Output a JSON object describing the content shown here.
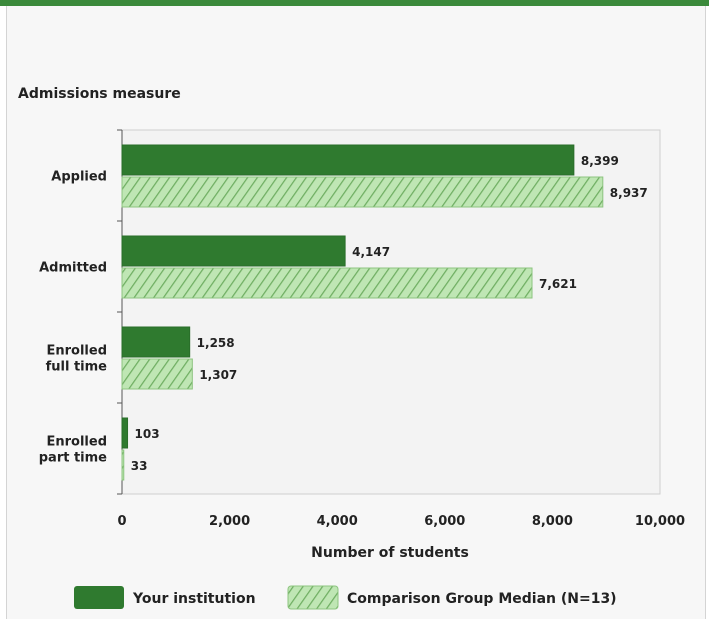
{
  "colors": {
    "accent_bar": "#3b8a3b",
    "your_institution": "#2f7a2f",
    "comparison_fill": "#bfe6b4",
    "comparison_hatch": "#6fae62"
  },
  "chart_data": {
    "type": "bar",
    "orientation": "horizontal",
    "title": "Admissions measure",
    "xlabel": "Number of students",
    "ylabel": "",
    "xlim": [
      0,
      10000
    ],
    "xticks": [
      0,
      2000,
      4000,
      6000,
      8000,
      10000
    ],
    "xtick_labels": [
      "0",
      "2,000",
      "4,000",
      "6,000",
      "8,000",
      "10,000"
    ],
    "categories": [
      [
        "Applied"
      ],
      [
        "Admitted"
      ],
      [
        "Enrolled",
        "full time"
      ],
      [
        "Enrolled",
        "part time"
      ]
    ],
    "series": [
      {
        "name": "Your institution",
        "values": [
          8399,
          4147,
          1258,
          103
        ],
        "labels": [
          "8,399",
          "4,147",
          "1,258",
          "103"
        ]
      },
      {
        "name": "Comparison Group Median (N=13)",
        "values": [
          8937,
          7621,
          1307,
          33
        ],
        "labels": [
          "8,937",
          "7,621",
          "1,307",
          "33"
        ]
      }
    ],
    "grid": false,
    "legend": "bottom"
  }
}
